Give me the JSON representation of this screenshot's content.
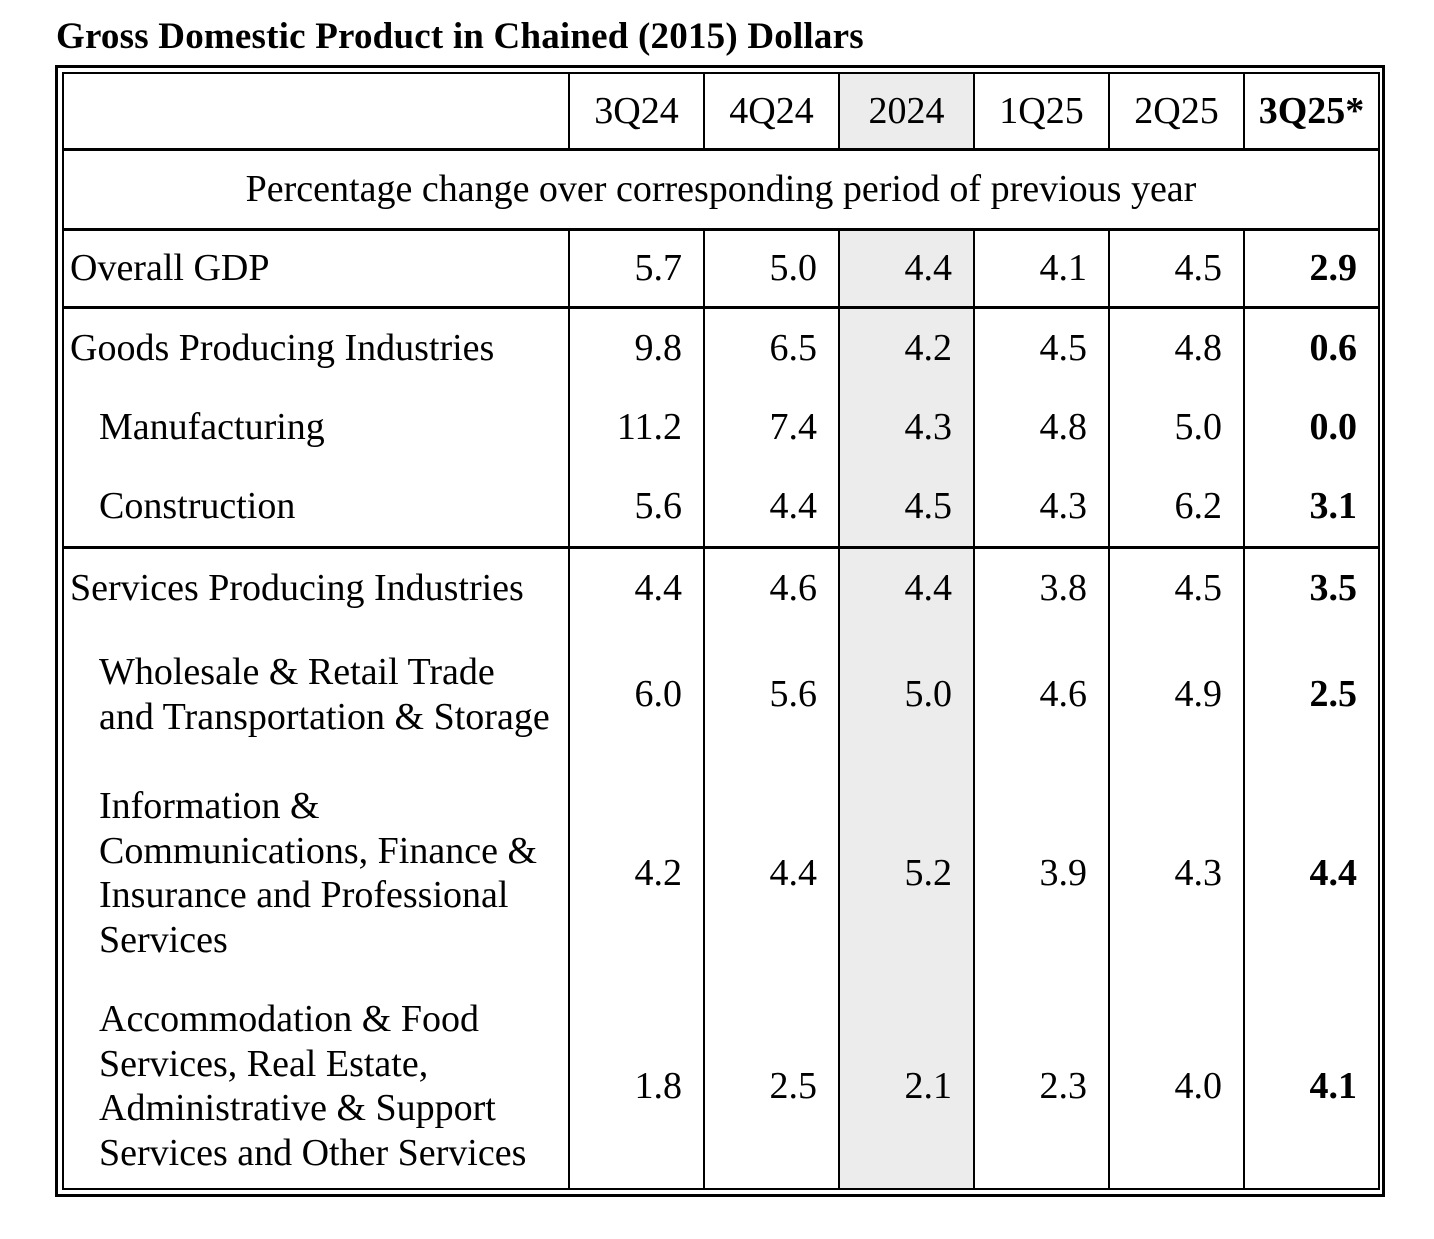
{
  "title": "Gross Domestic Product in Chained (2015) Dollars",
  "table": {
    "columns": [
      "",
      "3Q24",
      "4Q24",
      "2024",
      "1Q25",
      "2Q25",
      "3Q25*"
    ],
    "subheader": "Percentage change over corresponding period of previous year",
    "highlight": {
      "column": "2024",
      "color": "#ececec"
    },
    "rows": [
      {
        "label": "Overall GDP",
        "indent": false,
        "values": [
          "5.7",
          "5.0",
          "4.4",
          "4.1",
          "4.5",
          "2.9"
        ]
      },
      {
        "label": "Goods Producing Industries",
        "indent": false,
        "values": [
          "9.8",
          "6.5",
          "4.2",
          "4.5",
          "4.8",
          "0.6"
        ]
      },
      {
        "label": "Manufacturing",
        "indent": true,
        "values": [
          "11.2",
          "7.4",
          "4.3",
          "4.8",
          "5.0",
          "0.0"
        ]
      },
      {
        "label": "Construction",
        "indent": true,
        "values": [
          "5.6",
          "4.4",
          "4.5",
          "4.3",
          "6.2",
          "3.1"
        ]
      },
      {
        "label": "Services Producing Industries",
        "indent": false,
        "values": [
          "4.4",
          "4.6",
          "4.4",
          "3.8",
          "4.5",
          "3.5"
        ]
      },
      {
        "label": "Wholesale & Retail Trade\nand Transportation & Storage",
        "indent": true,
        "values": [
          "6.0",
          "5.6",
          "5.0",
          "4.6",
          "4.9",
          "2.5"
        ]
      },
      {
        "label": "Information &\nCommunications, Finance &\nInsurance and Professional\nServices",
        "indent": true,
        "values": [
          "4.2",
          "4.4",
          "5.2",
          "3.9",
          "4.3",
          "4.4"
        ]
      },
      {
        "label": "Accommodation & Food\nServices, Real Estate,\nAdministrative & Support\nServices and Other Services",
        "indent": true,
        "values": [
          "1.8",
          "2.5",
          "2.1",
          "2.3",
          "4.0",
          "4.1"
        ]
      }
    ]
  }
}
